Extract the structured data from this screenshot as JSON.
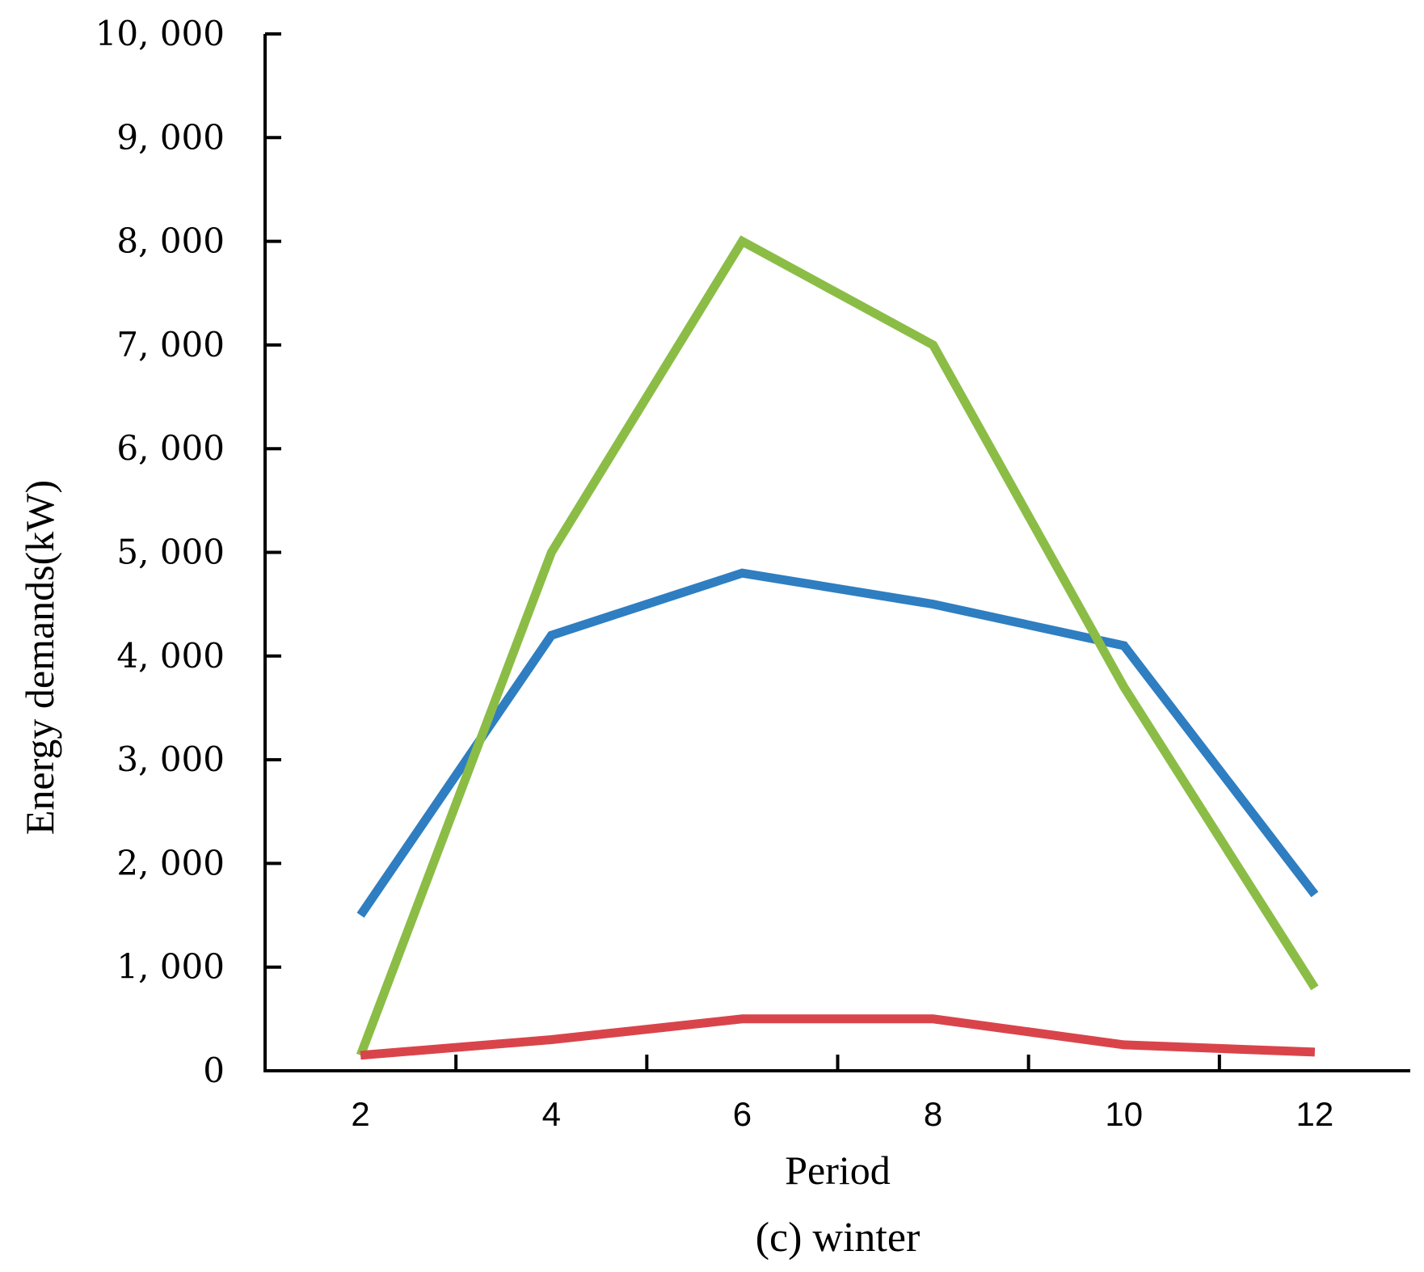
{
  "chart_data": {
    "type": "line",
    "title": "",
    "caption": "(c) winter",
    "xlabel": "Period",
    "ylabel": "Energy demands(kW)",
    "xlim": [
      1,
      13
    ],
    "ylim": [
      0,
      10000
    ],
    "x_ticks": [
      2,
      4,
      6,
      8,
      10,
      12
    ],
    "x_tick_labels": [
      "2",
      "4",
      "6",
      "8",
      "10",
      "12"
    ],
    "y_ticks": [
      0,
      1000,
      2000,
      3000,
      4000,
      5000,
      6000,
      7000,
      8000,
      9000,
      10000
    ],
    "y_tick_labels": [
      "0",
      "1, 000",
      "2, 000",
      "3, 000",
      "4, 000",
      "5, 000",
      "6, 000",
      "7, 000",
      "8, 000",
      "9, 000",
      "10, 000"
    ],
    "x_minor_ticks": [
      3,
      5,
      7,
      9,
      11
    ],
    "grid": false,
    "x": [
      2,
      4,
      6,
      8,
      10,
      12
    ],
    "series": [
      {
        "color": "#2e7ec1",
        "values": [
          1500,
          4200,
          4800,
          4500,
          4100,
          1700
        ]
      },
      {
        "color": "#8bbd46",
        "values": [
          150,
          5000,
          8000,
          7000,
          3700,
          800
        ]
      },
      {
        "color": "#d9444b",
        "values": [
          150,
          300,
          500,
          500,
          250,
          180
        ]
      }
    ]
  }
}
